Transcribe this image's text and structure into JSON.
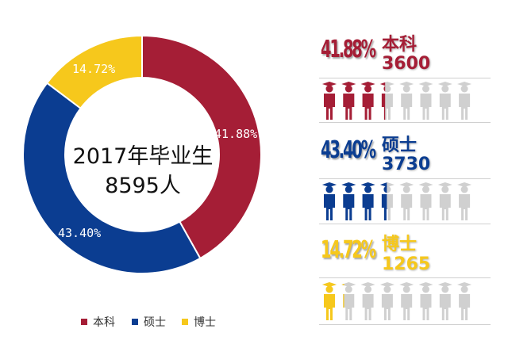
{
  "chart_data": {
    "type": "pie",
    "categories": [
      "本科",
      "硕士",
      "博士"
    ],
    "values": [
      41.88,
      43.4,
      14.72
    ],
    "counts": [
      3600,
      3730,
      1265
    ],
    "slice_labels": [
      "41.88%",
      "43.40%",
      "14.72%"
    ],
    "colors": [
      "#A51E36",
      "#0B3D91",
      "#F6C81C"
    ],
    "center_title": "2017年毕业生",
    "center_total": "8595人",
    "legend": [
      "本科",
      "硕士",
      "博士"
    ],
    "legend_position": "bottom",
    "donut": true
  },
  "breakdown": [
    {
      "pct": "41.88%",
      "name": "本科",
      "count": "3600",
      "color": "#A51E36",
      "filled_icons": 3.35
    },
    {
      "pct": "43.40%",
      "name": "硕士",
      "count": "3730",
      "color": "#0B3D91",
      "filled_icons": 3.47
    },
    {
      "pct": "14.72%",
      "name": "博士",
      "count": "1265",
      "color": "#F6C81C",
      "filled_icons": 1.18
    }
  ],
  "icons_per_row": 8,
  "icon_empty_color": "#D0D0D0",
  "icon_name": "graduate-person-icon"
}
